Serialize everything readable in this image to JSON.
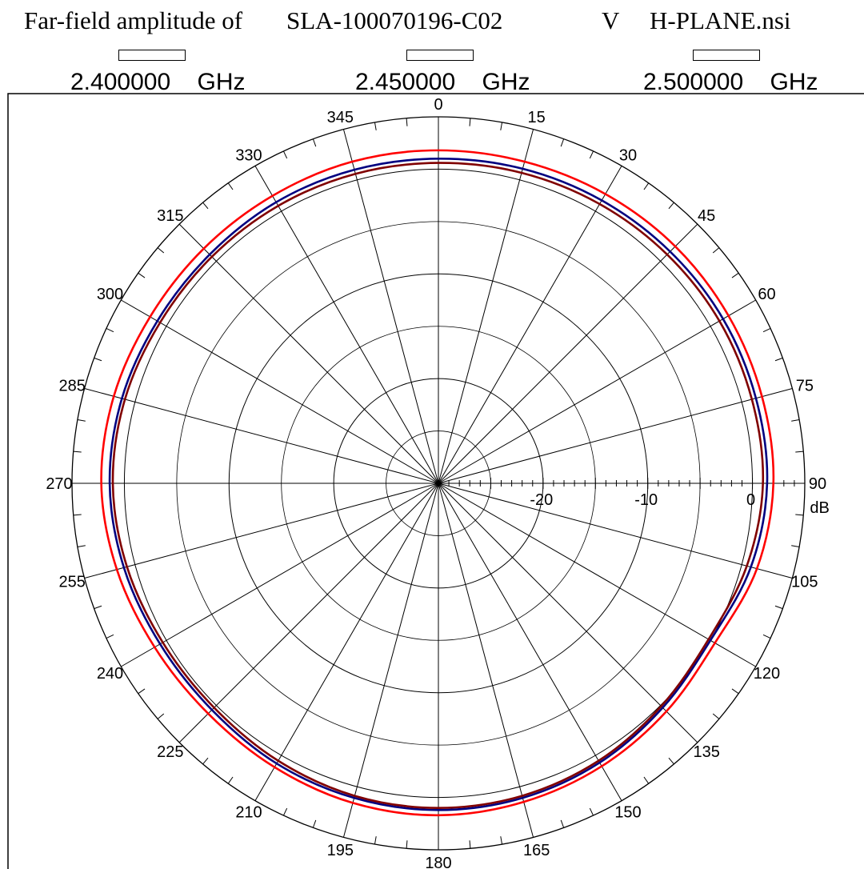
{
  "header": {
    "prefix": "Far-field amplitude of",
    "file": "SLA-100070196-C02",
    "polarization": "V",
    "plane_file": "H-PLANE.nsi"
  },
  "legend": [
    {
      "value": "2.400000",
      "unit": "GHz",
      "color": "#ff0000"
    },
    {
      "value": "2.450000",
      "unit": "GHz",
      "color": "#000080"
    },
    {
      "value": "2.500000",
      "unit": "GHz",
      "color": "#800000"
    }
  ],
  "chart_data": {
    "type": "polar",
    "angle_unit": "deg",
    "angle_direction": "clockwise",
    "angle_zero": "top",
    "angle_ticks": [
      0,
      15,
      30,
      45,
      60,
      75,
      90,
      105,
      120,
      135,
      150,
      165,
      180,
      195,
      210,
      225,
      240,
      255,
      270,
      285,
      300,
      315,
      330,
      345
    ],
    "radial_label": "dB",
    "radial_ticks": [
      -20,
      -10,
      0
    ],
    "rlim": [
      -30,
      5
    ],
    "grid": true,
    "series": [
      {
        "name": "2.400000 GHz",
        "color": "#ff0000",
        "angles": [
          0,
          15,
          30,
          45,
          60,
          75,
          90,
          105,
          120,
          135,
          150,
          165,
          180,
          195,
          210,
          225,
          240,
          255,
          270,
          285,
          300,
          315,
          330,
          345
        ],
        "values": [
          1.8,
          1.8,
          1.9,
          2.0,
          2.0,
          2.0,
          2.0,
          1.5,
          0.5,
          0.8,
          1.2,
          1.5,
          1.7,
          1.6,
          1.3,
          1.1,
          1.3,
          1.8,
          2.2,
          2.1,
          1.8,
          1.7,
          1.7,
          1.8
        ]
      },
      {
        "name": "2.450000 GHz",
        "color": "#000080",
        "angles": [
          0,
          15,
          30,
          45,
          60,
          75,
          90,
          105,
          120,
          135,
          150,
          165,
          180,
          195,
          210,
          225,
          240,
          255,
          270,
          285,
          300,
          315,
          330,
          345
        ],
        "values": [
          1.0,
          1.1,
          1.2,
          1.3,
          1.4,
          1.4,
          1.4,
          0.9,
          0.0,
          0.3,
          0.8,
          1.1,
          1.2,
          1.1,
          0.9,
          0.6,
          0.7,
          1.1,
          1.4,
          1.3,
          1.0,
          0.9,
          1.0,
          1.0
        ]
      },
      {
        "name": "2.500000 GHz",
        "color": "#800000",
        "angles": [
          0,
          15,
          30,
          45,
          60,
          75,
          90,
          105,
          120,
          135,
          150,
          165,
          180,
          195,
          210,
          225,
          240,
          255,
          270,
          285,
          300,
          315,
          330,
          345
        ],
        "values": [
          0.6,
          0.7,
          0.8,
          0.9,
          1.0,
          1.0,
          1.0,
          0.5,
          -0.2,
          0.1,
          0.6,
          0.9,
          1.0,
          0.9,
          0.6,
          0.3,
          0.4,
          0.8,
          1.1,
          1.0,
          0.7,
          0.6,
          0.6,
          0.6
        ]
      }
    ]
  }
}
